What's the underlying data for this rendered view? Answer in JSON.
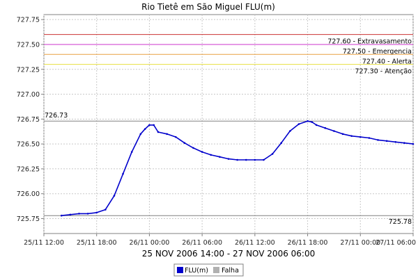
{
  "chart_data": {
    "type": "line",
    "title": "Rio Tietê em São Miguel FLU(m)",
    "xlabel": "25 NOV 2006 14:00 - 27 NOV 2006 06:00",
    "ylabel": "",
    "x_unit": "hours",
    "xlim": [
      "25/11 12:00",
      "27/11 06:00"
    ],
    "ylim": [
      725.6,
      727.8
    ],
    "x_ticks": [
      {
        "hour": 0,
        "label": "25/11 12:00"
      },
      {
        "hour": 6,
        "label": "25/11 18:00"
      },
      {
        "hour": 12,
        "label": "26/11 00:00"
      },
      {
        "hour": 18,
        "label": "26/11 06:00"
      },
      {
        "hour": 24,
        "label": "26/11 12:00"
      },
      {
        "hour": 30,
        "label": "26/11 18:00"
      },
      {
        "hour": 36,
        "label": "27/11 00:00"
      },
      {
        "hour": 42,
        "label": "27/11 06:00"
      }
    ],
    "y_ticks": [
      "725.75",
      "726.00",
      "726.25",
      "726.50",
      "726.75",
      "727.00",
      "727.25",
      "727.50",
      "727.75"
    ],
    "grid": true,
    "legend_position": "bottom-center",
    "legend": [
      {
        "label": "FLU(m)",
        "color": "#0000cc"
      },
      {
        "label": "Falha",
        "color": "#b0b0b0"
      }
    ],
    "reference_lines": [
      {
        "value": 727.6,
        "label": "727.60 - Extravasamento",
        "color": "#cc3333"
      },
      {
        "value": 727.5,
        "label": "727.50 - Emergencia",
        "color": "#cc33cc"
      },
      {
        "value": 727.4,
        "label": "727.40 - Alerta",
        "color": "#e8a040"
      },
      {
        "value": 727.3,
        "label": "727.30 - Atenção",
        "color": "#e8e040"
      },
      {
        "value": 726.73,
        "label": "726.73",
        "color": "#808080",
        "label_side": "left"
      },
      {
        "value": 725.78,
        "label": "725.78",
        "color": "#808080",
        "label_side": "right"
      }
    ],
    "series": [
      {
        "name": "FLU(m)",
        "color": "#0000cc",
        "x": [
          2,
          3,
          4,
          5,
          6,
          7,
          8,
          9,
          10,
          11,
          11.5,
          12,
          12.5,
          13,
          14,
          15,
          16,
          17,
          18,
          19,
          20,
          21,
          22,
          23,
          24,
          25,
          26,
          27,
          28,
          29,
          30,
          30.5,
          31,
          32,
          33,
          34,
          35,
          36,
          37,
          38,
          39,
          40,
          41,
          42
        ],
        "y": [
          725.78,
          725.79,
          725.8,
          725.8,
          725.81,
          725.84,
          725.98,
          726.2,
          726.42,
          726.6,
          726.65,
          726.69,
          726.69,
          726.62,
          726.6,
          726.57,
          726.51,
          726.46,
          726.42,
          726.39,
          726.37,
          726.35,
          726.34,
          726.34,
          726.34,
          726.34,
          726.4,
          726.51,
          726.63,
          726.7,
          726.73,
          726.72,
          726.69,
          726.66,
          726.63,
          726.6,
          726.58,
          726.57,
          726.56,
          726.54,
          726.53,
          726.52,
          726.51,
          726.5
        ]
      }
    ]
  }
}
